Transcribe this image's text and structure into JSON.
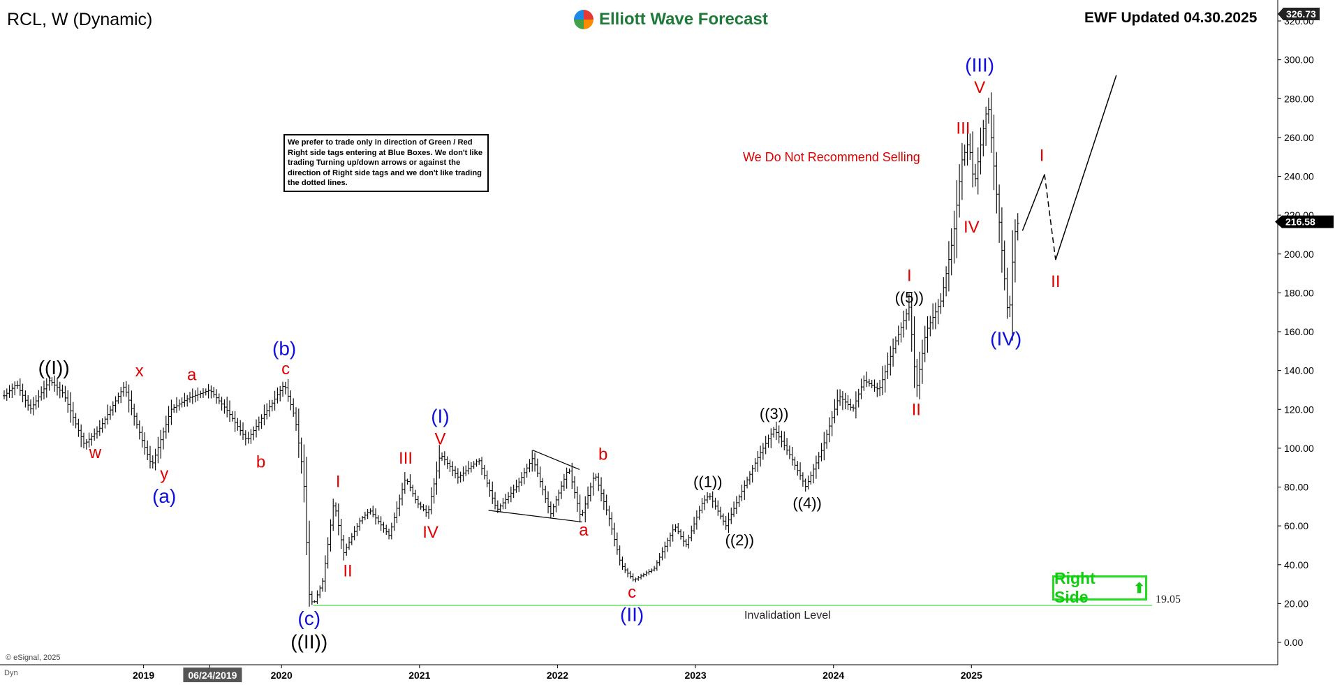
{
  "header": {
    "title": "RCL, W (Dynamic)",
    "brand": "Elliott Wave Forecast",
    "updated": "EWF Updated 04.30.2025",
    "copyright": "© eSignal, 2025",
    "dyn": "Dyn"
  },
  "notice": "We prefer to trade only in direction of Green / Red Right side tags entering at Blue Boxes. We don't like trading Turning up/down arrows or against the direction of Right side tags and we don't like trading the dotted lines.",
  "warning": "We Do Not Recommend Selling",
  "invalidation": {
    "label": "Invalidation Level",
    "value": "19.05",
    "price": 19.05
  },
  "right_side_tag": "Right Side",
  "colors": {
    "red": "#e00000",
    "blue": "#1010dd",
    "black": "#000000",
    "green": "#11cc11",
    "bars": "#000000"
  },
  "chart_data": {
    "type": "line",
    "subtype": "weekly price bars with Elliott Wave labels",
    "ylim": [
      0,
      320
    ],
    "y_ticks": [
      "0.00",
      "20.00",
      "40.00",
      "60.00",
      "80.00",
      "100.00",
      "120.00",
      "140.00",
      "160.00",
      "180.00",
      "200.00",
      "220.00",
      "240.00",
      "260.00",
      "280.00",
      "300.00",
      "320.00"
    ],
    "x_ticks": [
      {
        "label": "2019",
        "x": 2019.0
      },
      {
        "label": "06/24/2019",
        "x": 2019.48,
        "highlight": true
      },
      {
        "label": "2020",
        "x": 2020.0
      },
      {
        "label": "2021",
        "x": 2021.0
      },
      {
        "label": "2022",
        "x": 2022.0
      },
      {
        "label": "2023",
        "x": 2023.0
      },
      {
        "label": "2024",
        "x": 2024.0
      },
      {
        "label": "2025",
        "x": 2025.0
      }
    ],
    "xlim": [
      2017.98,
      2027.22
    ],
    "last_price": "216.58",
    "last_price_value": 216.58,
    "top_value": "326.73",
    "price_path": [
      [
        2017.99,
        127
      ],
      [
        2018.08,
        133
      ],
      [
        2018.18,
        120
      ],
      [
        2018.32,
        135
      ],
      [
        2018.42,
        128
      ],
      [
        2018.57,
        102
      ],
      [
        2018.68,
        110
      ],
      [
        2018.86,
        132
      ],
      [
        2018.99,
        104
      ],
      [
        2019.06,
        91
      ],
      [
        2019.2,
        120
      ],
      [
        2019.33,
        126
      ],
      [
        2019.48,
        130
      ],
      [
        2019.6,
        120
      ],
      [
        2019.75,
        104
      ],
      [
        2019.88,
        118
      ],
      [
        2019.94,
        124
      ],
      [
        2020.02,
        133
      ],
      [
        2020.1,
        115
      ],
      [
        2020.16,
        85
      ],
      [
        2020.2,
        25
      ],
      [
        2020.23,
        19.1
      ],
      [
        2020.3,
        32
      ],
      [
        2020.38,
        73
      ],
      [
        2020.45,
        46
      ],
      [
        2020.57,
        63
      ],
      [
        2020.64,
        68
      ],
      [
        2020.78,
        55
      ],
      [
        2020.9,
        85
      ],
      [
        2020.98,
        72
      ],
      [
        2021.06,
        66
      ],
      [
        2021.15,
        97
      ],
      [
        2021.28,
        85
      ],
      [
        2021.43,
        94
      ],
      [
        2021.56,
        68
      ],
      [
        2021.7,
        80
      ],
      [
        2021.82,
        95
      ],
      [
        2021.95,
        66
      ],
      [
        2022.08,
        90
      ],
      [
        2022.17,
        64
      ],
      [
        2022.27,
        87
      ],
      [
        2022.37,
        65
      ],
      [
        2022.46,
        40
      ],
      [
        2022.55,
        32
      ],
      [
        2022.7,
        38
      ],
      [
        2022.85,
        60
      ],
      [
        2022.93,
        50
      ],
      [
        2023.05,
        72
      ],
      [
        2023.1,
        76
      ],
      [
        2023.22,
        60
      ],
      [
        2023.35,
        80
      ],
      [
        2023.45,
        95
      ],
      [
        2023.57,
        110
      ],
      [
        2023.68,
        97
      ],
      [
        2023.8,
        80
      ],
      [
        2023.92,
        100
      ],
      [
        2024.04,
        127
      ],
      [
        2024.14,
        120
      ],
      [
        2024.22,
        135
      ],
      [
        2024.33,
        130
      ],
      [
        2024.45,
        155
      ],
      [
        2024.55,
        173
      ],
      [
        2024.6,
        130
      ],
      [
        2024.67,
        160
      ],
      [
        2024.78,
        176
      ],
      [
        2024.87,
        210
      ],
      [
        2024.93,
        248
      ],
      [
        2024.98,
        258
      ],
      [
        2025.02,
        235
      ],
      [
        2025.08,
        262
      ],
      [
        2025.12,
        278
      ],
      [
        2025.17,
        240
      ],
      [
        2025.23,
        195
      ],
      [
        2025.27,
        164
      ],
      [
        2025.31,
        210
      ],
      [
        2025.34,
        216.58
      ]
    ],
    "projection": {
      "solid": [
        [
          2025.37,
          212
        ],
        [
          2025.53,
          241
        ]
      ],
      "dashed": [
        [
          2025.53,
          241
        ],
        [
          2025.61,
          197
        ]
      ],
      "solid2": [
        [
          2025.61,
          197
        ],
        [
          2026.05,
          292
        ]
      ]
    },
    "triangle": {
      "upper": [
        [
          2021.82,
          99
        ],
        [
          2022.16,
          89
        ]
      ],
      "lower": [
        [
          2021.5,
          68
        ],
        [
          2022.18,
          62
        ]
      ]
    },
    "wave_labels": [
      {
        "text": "((I))",
        "x": 2018.35,
        "y": 138,
        "color": "black",
        "size": 28
      },
      {
        "text": "w",
        "x": 2018.65,
        "y": 95,
        "color": "red",
        "size": 24
      },
      {
        "text": "x",
        "x": 2018.97,
        "y": 137,
        "color": "red",
        "size": 24
      },
      {
        "text": "y",
        "x": 2019.15,
        "y": 84,
        "color": "red",
        "size": 24
      },
      {
        "text": "(a)",
        "x": 2019.15,
        "y": 72,
        "color": "blue",
        "size": 28
      },
      {
        "text": "a",
        "x": 2019.35,
        "y": 135,
        "color": "red",
        "size": 24
      },
      {
        "text": "b",
        "x": 2019.85,
        "y": 90,
        "color": "red",
        "size": 24
      },
      {
        "text": "(b)",
        "x": 2020.02,
        "y": 148,
        "color": "blue",
        "size": 28
      },
      {
        "text": "c",
        "x": 2020.03,
        "y": 138,
        "color": "red",
        "size": 24
      },
      {
        "text": "I",
        "x": 2020.41,
        "y": 80,
        "color": "red",
        "size": 24
      },
      {
        "text": "II",
        "x": 2020.48,
        "y": 34,
        "color": "red",
        "size": 24
      },
      {
        "text": "(c)",
        "x": 2020.2,
        "y": 9,
        "color": "blue",
        "size": 28
      },
      {
        "text": "((II))",
        "x": 2020.2,
        "y": -3,
        "color": "black",
        "size": 28
      },
      {
        "text": "III",
        "x": 2020.9,
        "y": 92,
        "color": "red",
        "size": 24
      },
      {
        "text": "IV",
        "x": 2021.08,
        "y": 54,
        "color": "red",
        "size": 24
      },
      {
        "text": "(I)",
        "x": 2021.15,
        "y": 113,
        "color": "blue",
        "size": 28
      },
      {
        "text": "V",
        "x": 2021.15,
        "y": 102,
        "color": "red",
        "size": 24
      },
      {
        "text": "a",
        "x": 2022.19,
        "y": 55,
        "color": "red",
        "size": 24
      },
      {
        "text": "b",
        "x": 2022.33,
        "y": 94,
        "color": "red",
        "size": 24
      },
      {
        "text": "c",
        "x": 2022.54,
        "y": 23,
        "color": "red",
        "size": 24
      },
      {
        "text": "(II)",
        "x": 2022.54,
        "y": 11,
        "color": "blue",
        "size": 28
      },
      {
        "text": "((1))",
        "x": 2023.09,
        "y": 80,
        "color": "black",
        "size": 22
      },
      {
        "text": "((2))",
        "x": 2023.32,
        "y": 50,
        "color": "black",
        "size": 22
      },
      {
        "text": "((3))",
        "x": 2023.57,
        "y": 115,
        "color": "black",
        "size": 22
      },
      {
        "text": "((4))",
        "x": 2023.81,
        "y": 69,
        "color": "black",
        "size": 22
      },
      {
        "text": "I",
        "x": 2024.55,
        "y": 186,
        "color": "red",
        "size": 24
      },
      {
        "text": "((5))",
        "x": 2024.55,
        "y": 175,
        "color": "black",
        "size": 22
      },
      {
        "text": "II",
        "x": 2024.6,
        "y": 117,
        "color": "red",
        "size": 24
      },
      {
        "text": "III",
        "x": 2024.94,
        "y": 262,
        "color": "red",
        "size": 24
      },
      {
        "text": "(III)",
        "x": 2025.06,
        "y": 294,
        "color": "blue",
        "size": 28
      },
      {
        "text": "V",
        "x": 2025.06,
        "y": 283,
        "color": "red",
        "size": 24
      },
      {
        "text": "IV",
        "x": 2025.0,
        "y": 211,
        "color": "red",
        "size": 24
      },
      {
        "text": "(IV)",
        "x": 2025.25,
        "y": 153,
        "color": "blue",
        "size": 28
      },
      {
        "text": "I",
        "x": 2025.51,
        "y": 248,
        "color": "red",
        "size": 24
      },
      {
        "text": "II",
        "x": 2025.61,
        "y": 183,
        "color": "red",
        "size": 24
      }
    ]
  }
}
